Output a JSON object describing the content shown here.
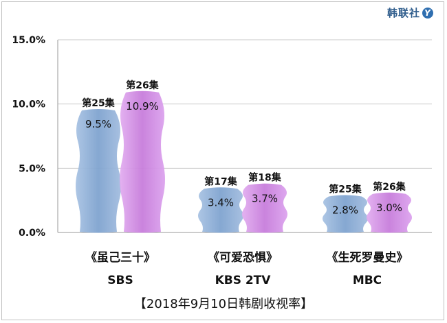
{
  "brand": {
    "name": "韩联社",
    "mark": "Y"
  },
  "caption": "【2018年9月10日韩剧收视率】",
  "chart_data": {
    "type": "bar",
    "title": "",
    "ylim": [
      0,
      15
    ],
    "yticks": [
      "0.0%",
      "5.0%",
      "10.0%",
      "15.0%"
    ],
    "ytick_values": [
      0,
      5,
      10,
      15
    ],
    "grid": true,
    "groups": [
      {
        "show": "《虽己三十》",
        "network": "SBS",
        "bars": [
          {
            "episode": "第25集",
            "value": 9.5,
            "label": "9.5%"
          },
          {
            "episode": "第26集",
            "value": 10.9,
            "label": "10.9%"
          }
        ]
      },
      {
        "show": "《可爱恐惧》",
        "network": "KBS 2TV",
        "bars": [
          {
            "episode": "第17集",
            "value": 3.4,
            "label": "3.4%"
          },
          {
            "episode": "第18集",
            "value": 3.7,
            "label": "3.7%"
          }
        ]
      },
      {
        "show": "《生死罗曼史》",
        "network": "MBC",
        "bars": [
          {
            "episode": "第25集",
            "value": 2.8,
            "label": "2.8%"
          },
          {
            "episode": "第26集",
            "value": 3.0,
            "label": "3.0%"
          }
        ]
      }
    ],
    "colors": {
      "first": "#8fb0d8",
      "second": "#d28fe0"
    }
  }
}
